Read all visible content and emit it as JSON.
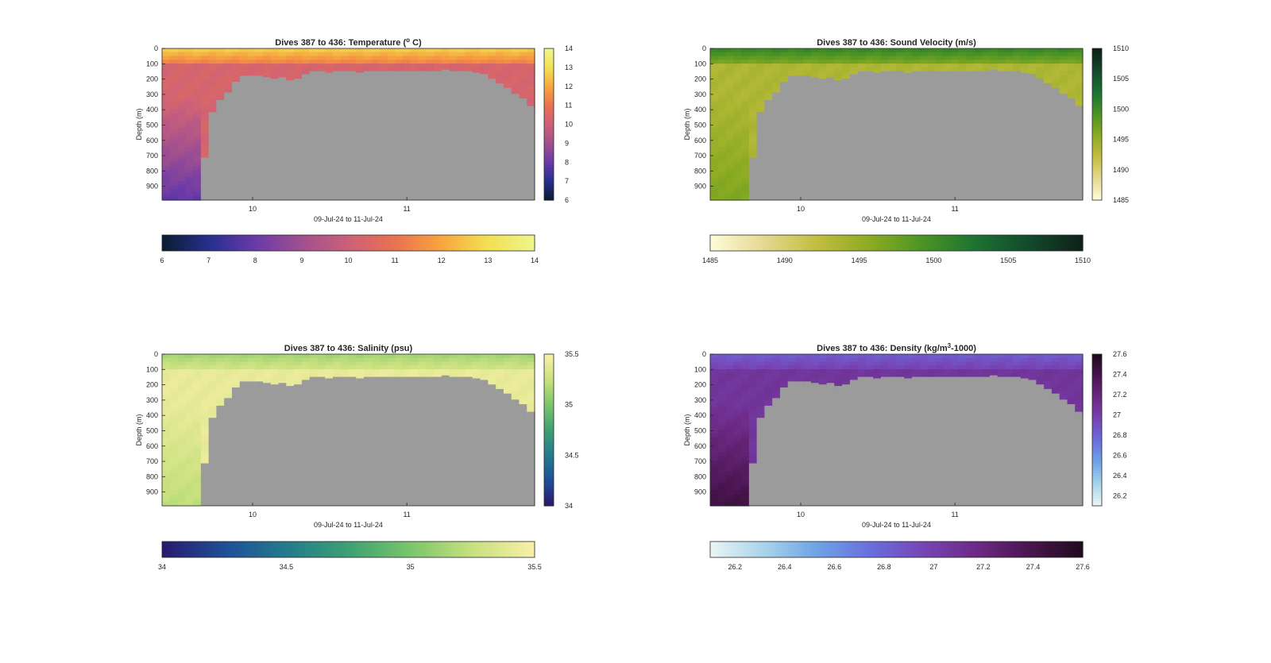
{
  "figure": {
    "background": "#ffffff",
    "seafloor_color": "#9b9b9b",
    "axis_color": "#262626"
  },
  "chart_data": [
    {
      "type": "heatmap",
      "title": "Dives 387 to 436: Temperature (",
      "title_sup": "o",
      "title_tail": " C)",
      "xlabel": "09-Jul-24 to 11-Jul-24",
      "ylabel": "Depth (m)",
      "x_ticks": [
        "10",
        "11"
      ],
      "y_ticks": [
        "0",
        "100",
        "200",
        "300",
        "400",
        "500",
        "600",
        "700",
        "800",
        "900"
      ],
      "ylim": [
        0,
        990
      ],
      "colorbar_ticks": [
        "6",
        "7",
        "8",
        "9",
        "10",
        "11",
        "12",
        "13",
        "14"
      ],
      "clim": [
        6,
        14
      ],
      "colormap": [
        "#0b1d33",
        "#26308f",
        "#6b3aa8",
        "#a1508f",
        "#cc6079",
        "#ea7150",
        "#f7a43f",
        "#f2df52",
        "#eef58a"
      ],
      "surface_value": 12.6,
      "interior_value": 10.3,
      "deep_value": 7.8
    },
    {
      "type": "heatmap",
      "title": "Dives 387 to 436: Sound Velocity (m/s)",
      "title_sup": "",
      "title_tail": "",
      "xlabel": "09-Jul-24 to 11-Jul-24",
      "ylabel": "Depth (m)",
      "x_ticks": [
        "10",
        "11"
      ],
      "y_ticks": [
        "0",
        "100",
        "200",
        "300",
        "400",
        "500",
        "600",
        "700",
        "800",
        "900"
      ],
      "ylim": [
        0,
        990
      ],
      "colorbar_ticks": [
        "1485",
        "1490",
        "1495",
        "1500",
        "1505",
        "1510"
      ],
      "clim": [
        1485,
        1510
      ],
      "colormap": [
        "#fefbd8",
        "#e4d890",
        "#c2bd3f",
        "#8cab22",
        "#4b9424",
        "#1c7232",
        "#144a2c",
        "#0e2118"
      ],
      "surface_value": 1500.5,
      "interior_value": 1493.5,
      "deep_value": 1496.5
    },
    {
      "type": "heatmap",
      "title": "Dives 387 to 436: Salinity (psu)",
      "title_sup": "",
      "title_tail": "",
      "xlabel": "09-Jul-24 to 11-Jul-24",
      "ylabel": "Depth (m)",
      "x_ticks": [
        "10",
        "11"
      ],
      "y_ticks": [
        "0",
        "100",
        "200",
        "300",
        "400",
        "500",
        "600",
        "700",
        "800",
        "900"
      ],
      "ylim": [
        0,
        990
      ],
      "colorbar_ticks": [
        "34",
        "34.5",
        "35",
        "35.5"
      ],
      "clim": [
        34,
        35.5
      ],
      "colormap": [
        "#2a1a6e",
        "#1f4f97",
        "#237b8d",
        "#3ea073",
        "#79c56b",
        "#c7e07e",
        "#f8efa6"
      ],
      "surface_value": 35.15,
      "interior_value": 35.42,
      "deep_value": 35.22
    },
    {
      "type": "heatmap",
      "title": "Dives 387 to 436: Density (kg/m",
      "title_sup": "3",
      "title_tail": "-1000)",
      "xlabel": "09-Jul-24 to 11-Jul-24",
      "ylabel": "Depth (m)",
      "x_ticks": [
        "10",
        "11"
      ],
      "y_ticks": [
        "0",
        "100",
        "200",
        "300",
        "400",
        "500",
        "600",
        "700",
        "800",
        "900"
      ],
      "ylim": [
        0,
        990
      ],
      "colorbar_ticks": [
        "26.2",
        "26.4",
        "26.6",
        "26.8",
        "27",
        "27.2",
        "27.4",
        "27.6"
      ],
      "clim": [
        26.1,
        27.6
      ],
      "colormap": [
        "#e9f4f5",
        "#a7d3ea",
        "#6ea3e6",
        "#6a6fdd",
        "#7745b6",
        "#6d2a86",
        "#4a1550",
        "#220a1e"
      ],
      "surface_value": 26.85,
      "interior_value": 27.08,
      "deep_value": 27.45
    }
  ]
}
